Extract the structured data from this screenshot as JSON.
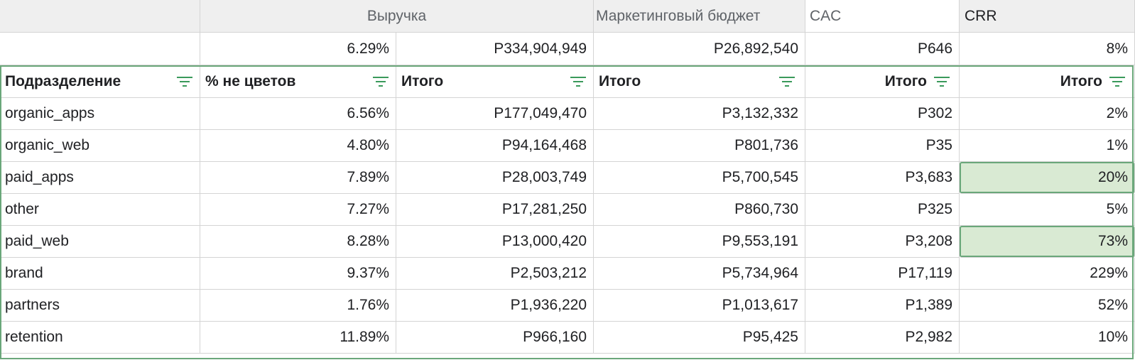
{
  "header_groups": {
    "revenue": "Выручка",
    "marketing_budget": "Маркетинговый бюджет",
    "cac": "CAC",
    "crr": "CRR"
  },
  "totals": {
    "non_flowers_pct": "6.29%",
    "revenue": "Р334,904,949",
    "marketing_budget": "Р26,892,540",
    "cac": "Р646",
    "crr": "8%"
  },
  "columns": {
    "division": "Подразделение",
    "non_flowers_pct": "% не цветов",
    "revenue_total": "Итого",
    "budget_total": "Итого",
    "cac_total": "Итого",
    "crr_total": "Итого"
  },
  "rows": [
    {
      "division": "organic_apps",
      "non_flowers_pct": "6.56%",
      "revenue": "Р177,049,470",
      "budget": "Р3,132,332",
      "cac": "Р302",
      "crr": "2%",
      "highlight": false
    },
    {
      "division": "organic_web",
      "non_flowers_pct": "4.80%",
      "revenue": "Р94,164,468",
      "budget": "Р801,736",
      "cac": "Р35",
      "crr": "1%",
      "highlight": false
    },
    {
      "division": "paid_apps",
      "non_flowers_pct": "7.89%",
      "revenue": "Р28,003,749",
      "budget": "Р5,700,545",
      "cac": "Р3,683",
      "crr": "20%",
      "highlight": true
    },
    {
      "division": "other",
      "non_flowers_pct": "7.27%",
      "revenue": "Р17,281,250",
      "budget": "Р860,730",
      "cac": "Р325",
      "crr": "5%",
      "highlight": false
    },
    {
      "division": "paid_web",
      "non_flowers_pct": "8.28%",
      "revenue": "Р13,000,420",
      "budget": "Р9,553,191",
      "cac": "Р3,208",
      "crr": "73%",
      "highlight": true
    },
    {
      "division": "brand",
      "non_flowers_pct": "9.37%",
      "revenue": "Р2,503,212",
      "budget": "Р5,734,964",
      "cac": "Р17,119",
      "crr": "229%",
      "highlight": false
    },
    {
      "division": "partners",
      "non_flowers_pct": "1.76%",
      "revenue": "Р1,936,220",
      "budget": "Р1,013,617",
      "cac": "Р1,389",
      "crr": "52%",
      "highlight": false
    },
    {
      "division": "retention",
      "non_flowers_pct": "11.89%",
      "revenue": "Р966,160",
      "budget": "Р95,425",
      "cac": "Р2,982",
      "crr": "10%",
      "highlight": false
    }
  ],
  "colors": {
    "header_gray": "#efefef",
    "accent_green": "#6aa77a",
    "highlight_fill": "#d9ead3",
    "filter_icon": "#3a9a5b"
  },
  "icons": {
    "filter": "filter-icon"
  }
}
